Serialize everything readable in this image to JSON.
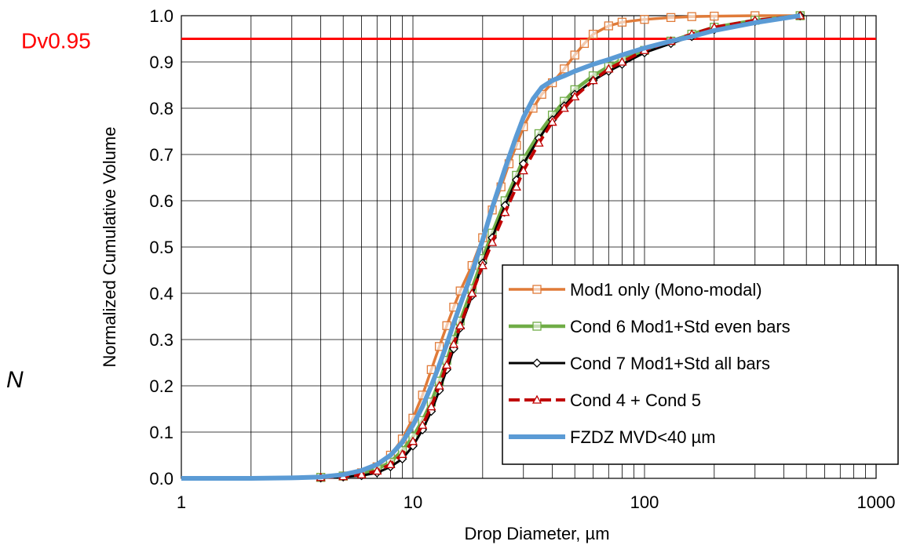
{
  "chart_data": {
    "type": "line",
    "title": "",
    "xlabel": "Drop Diameter, µm",
    "ylabel": "Normalized Cumulative Volume",
    "xscale": "log",
    "xlim": [
      1,
      1000
    ],
    "ylim": [
      0,
      1
    ],
    "x_ticks": [
      "1",
      "10",
      "100",
      "1000"
    ],
    "y_ticks": [
      "0.0",
      "0.1",
      "0.2",
      "0.3",
      "0.4",
      "0.5",
      "0.6",
      "0.7",
      "0.8",
      "0.9",
      "1.0"
    ],
    "grid": true,
    "legend_position": "bottom-right",
    "reference_line": {
      "label": "Dv0.95",
      "y": 0.95,
      "color": "#ff0000"
    },
    "stray_text": "N",
    "series": [
      {
        "name": "Mod1 only (Mono-modal)",
        "color": "#e07b39",
        "marker": "square-open",
        "dash": "solid",
        "points": [
          [
            1,
            0
          ],
          [
            2,
            0
          ],
          [
            3,
            0.001
          ],
          [
            4,
            0.002
          ],
          [
            5,
            0.005
          ],
          [
            6,
            0.012
          ],
          [
            7,
            0.025
          ],
          [
            8,
            0.05
          ],
          [
            9,
            0.085
          ],
          [
            10,
            0.13
          ],
          [
            11,
            0.18
          ],
          [
            12,
            0.235
          ],
          [
            13,
            0.285
          ],
          [
            14,
            0.33
          ],
          [
            15,
            0.37
          ],
          [
            16,
            0.405
          ],
          [
            18,
            0.46
          ],
          [
            20,
            0.52
          ],
          [
            22,
            0.58
          ],
          [
            24,
            0.63
          ],
          [
            26,
            0.68
          ],
          [
            28,
            0.72
          ],
          [
            30,
            0.76
          ],
          [
            33,
            0.8
          ],
          [
            36,
            0.83
          ],
          [
            40,
            0.855
          ],
          [
            45,
            0.885
          ],
          [
            50,
            0.915
          ],
          [
            55,
            0.94
          ],
          [
            60,
            0.96
          ],
          [
            70,
            0.978
          ],
          [
            80,
            0.986
          ],
          [
            100,
            0.992
          ],
          [
            130,
            0.996
          ],
          [
            160,
            0.998
          ],
          [
            200,
            0.999
          ],
          [
            300,
            1.0
          ],
          [
            470,
            1.0
          ]
        ]
      },
      {
        "name": "Cond 6 Mod1+Std even bars",
        "color": "#70ad47",
        "marker": "square-open",
        "dash": "solid",
        "points": [
          [
            1,
            0
          ],
          [
            3,
            0.001
          ],
          [
            4,
            0.002
          ],
          [
            5,
            0.005
          ],
          [
            6,
            0.01
          ],
          [
            7,
            0.02
          ],
          [
            8,
            0.035
          ],
          [
            9,
            0.06
          ],
          [
            10,
            0.09
          ],
          [
            11,
            0.125
          ],
          [
            12,
            0.165
          ],
          [
            13,
            0.21
          ],
          [
            14,
            0.255
          ],
          [
            15,
            0.3
          ],
          [
            16,
            0.34
          ],
          [
            18,
            0.41
          ],
          [
            20,
            0.475
          ],
          [
            22,
            0.53
          ],
          [
            25,
            0.6
          ],
          [
            28,
            0.655
          ],
          [
            30,
            0.69
          ],
          [
            35,
            0.745
          ],
          [
            40,
            0.785
          ],
          [
            45,
            0.815
          ],
          [
            50,
            0.84
          ],
          [
            60,
            0.87
          ],
          [
            70,
            0.89
          ],
          [
            80,
            0.905
          ],
          [
            100,
            0.925
          ],
          [
            130,
            0.945
          ],
          [
            160,
            0.96
          ],
          [
            200,
            0.975
          ],
          [
            300,
            0.99
          ],
          [
            470,
            1.0
          ]
        ]
      },
      {
        "name": "Cond 7 Mod1+Std all bars",
        "color": "#000000",
        "marker": "diamond-open",
        "dash": "solid",
        "points": [
          [
            1,
            0
          ],
          [
            3,
            0.001
          ],
          [
            4,
            0.001
          ],
          [
            5,
            0.003
          ],
          [
            6,
            0.006
          ],
          [
            7,
            0.012
          ],
          [
            8,
            0.025
          ],
          [
            9,
            0.042
          ],
          [
            10,
            0.07
          ],
          [
            11,
            0.105
          ],
          [
            12,
            0.145
          ],
          [
            13,
            0.19
          ],
          [
            14,
            0.235
          ],
          [
            15,
            0.28
          ],
          [
            16,
            0.325
          ],
          [
            18,
            0.395
          ],
          [
            20,
            0.465
          ],
          [
            22,
            0.52
          ],
          [
            25,
            0.59
          ],
          [
            28,
            0.645
          ],
          [
            30,
            0.68
          ],
          [
            35,
            0.735
          ],
          [
            40,
            0.775
          ],
          [
            45,
            0.805
          ],
          [
            50,
            0.83
          ],
          [
            60,
            0.86
          ],
          [
            70,
            0.88
          ],
          [
            80,
            0.895
          ],
          [
            100,
            0.92
          ],
          [
            130,
            0.94
          ],
          [
            160,
            0.955
          ],
          [
            200,
            0.97
          ],
          [
            300,
            0.988
          ],
          [
            470,
            1.0
          ]
        ]
      },
      {
        "name": "Cond 4 + Cond 5",
        "color": "#c00000",
        "marker": "triangle-open",
        "dash": "dashed",
        "points": [
          [
            1,
            0
          ],
          [
            3,
            0.001
          ],
          [
            4,
            0.002
          ],
          [
            5,
            0.004
          ],
          [
            6,
            0.008
          ],
          [
            7,
            0.016
          ],
          [
            8,
            0.03
          ],
          [
            9,
            0.052
          ],
          [
            10,
            0.08
          ],
          [
            11,
            0.115
          ],
          [
            12,
            0.155
          ],
          [
            13,
            0.2
          ],
          [
            14,
            0.245
          ],
          [
            15,
            0.29
          ],
          [
            16,
            0.33
          ],
          [
            18,
            0.4
          ],
          [
            20,
            0.46
          ],
          [
            22,
            0.51
          ],
          [
            25,
            0.575
          ],
          [
            28,
            0.63
          ],
          [
            30,
            0.665
          ],
          [
            35,
            0.725
          ],
          [
            40,
            0.77
          ],
          [
            45,
            0.8
          ],
          [
            50,
            0.825
          ],
          [
            60,
            0.86
          ],
          [
            70,
            0.885
          ],
          [
            80,
            0.9
          ],
          [
            100,
            0.925
          ],
          [
            130,
            0.945
          ],
          [
            160,
            0.96
          ],
          [
            200,
            0.975
          ],
          [
            300,
            0.99
          ],
          [
            470,
            1.0
          ]
        ]
      },
      {
        "name": "FZDZ MVD<40 µm",
        "color": "#5b9bd5",
        "marker": "none",
        "dash": "solid",
        "points": [
          [
            1,
            0
          ],
          [
            2,
            0
          ],
          [
            3,
            0.001
          ],
          [
            4,
            0.003
          ],
          [
            5,
            0.008
          ],
          [
            6,
            0.017
          ],
          [
            7,
            0.03
          ],
          [
            8,
            0.05
          ],
          [
            9,
            0.078
          ],
          [
            10,
            0.115
          ],
          [
            11,
            0.155
          ],
          [
            12,
            0.2
          ],
          [
            13,
            0.245
          ],
          [
            14,
            0.29
          ],
          [
            15,
            0.335
          ],
          [
            16,
            0.375
          ],
          [
            18,
            0.445
          ],
          [
            20,
            0.515
          ],
          [
            22,
            0.585
          ],
          [
            25,
            0.67
          ],
          [
            28,
            0.74
          ],
          [
            30,
            0.78
          ],
          [
            33,
            0.82
          ],
          [
            36,
            0.845
          ],
          [
            40,
            0.86
          ],
          [
            45,
            0.87
          ],
          [
            50,
            0.88
          ],
          [
            60,
            0.895
          ],
          [
            70,
            0.905
          ],
          [
            80,
            0.915
          ],
          [
            100,
            0.93
          ],
          [
            130,
            0.945
          ],
          [
            160,
            0.955
          ],
          [
            200,
            0.968
          ],
          [
            300,
            0.985
          ],
          [
            470,
            1.0
          ]
        ]
      }
    ]
  }
}
